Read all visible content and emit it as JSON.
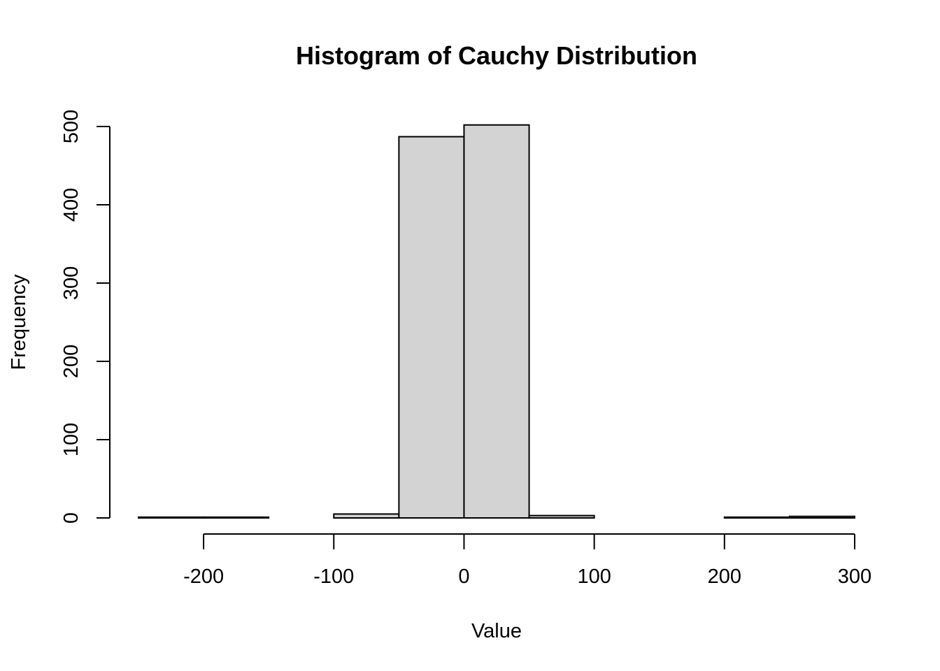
{
  "chart_data": {
    "type": "bar",
    "title": "Histogram of Cauchy Distribution",
    "xlabel": "Value",
    "ylabel": "Frequency",
    "bin_edges": [
      -250,
      -200,
      -150,
      -100,
      -50,
      0,
      50,
      100,
      150,
      200,
      250,
      300
    ],
    "values": [
      1,
      1,
      0,
      5,
      487,
      502,
      3,
      0,
      0,
      1,
      2
    ],
    "xticks": [
      -200,
      -100,
      0,
      100,
      200,
      300
    ],
    "yticks": [
      0,
      100,
      200,
      300,
      400,
      500
    ],
    "xlim": [
      -250,
      300
    ],
    "ylim": [
      0,
      500
    ],
    "bar_color": "#d3d3d3",
    "edge_color": "#000000",
    "grid": false
  }
}
